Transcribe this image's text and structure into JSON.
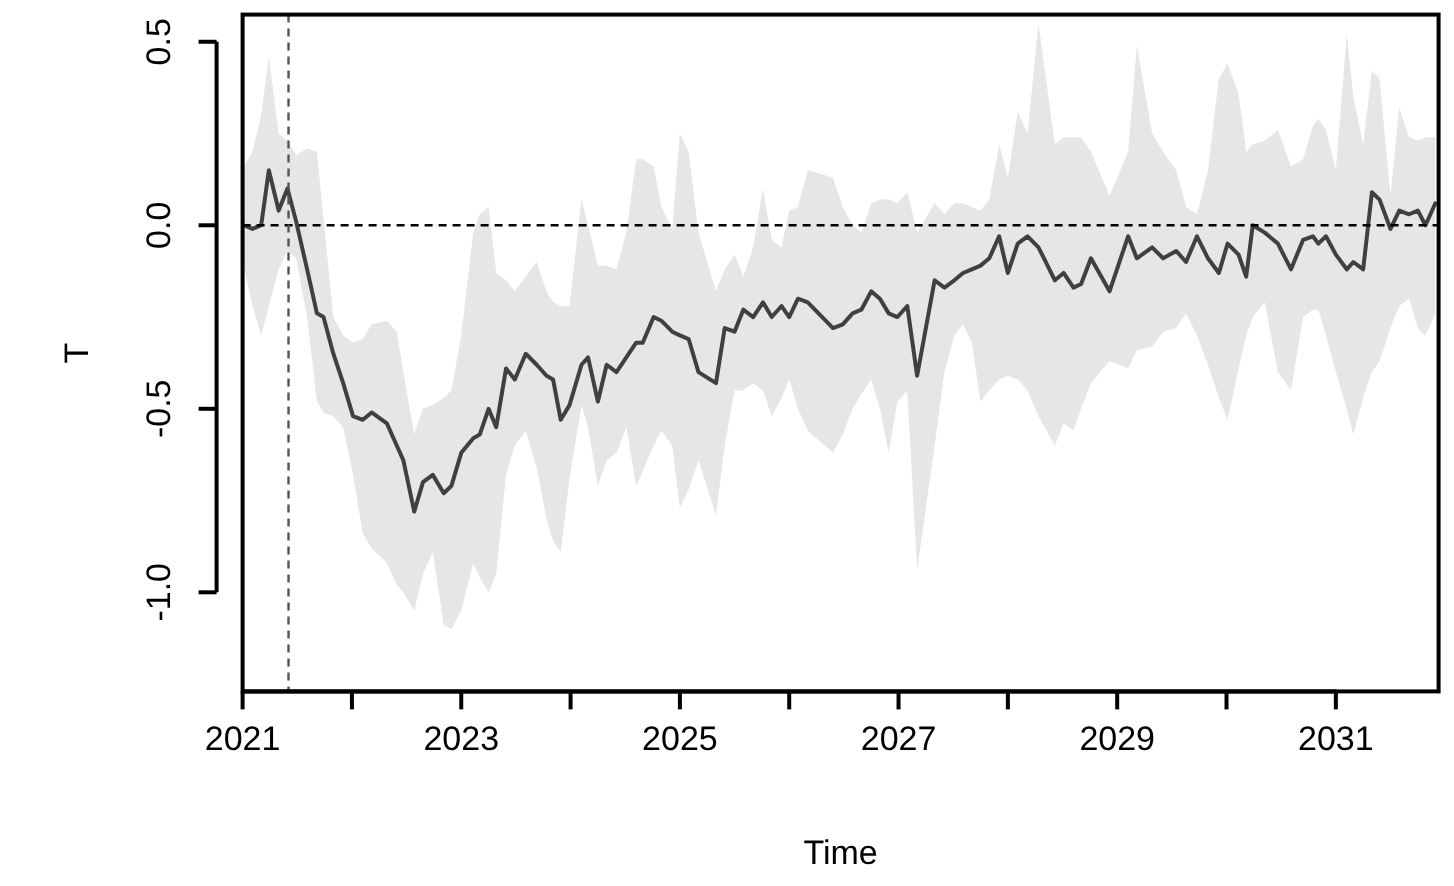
{
  "chart_data": {
    "type": "line",
    "xlabel": "Time",
    "ylabel": "T",
    "xlim": [
      2021,
      2031.94
    ],
    "ylim": [
      -1.27,
      0.574
    ],
    "xticks": [
      {
        "value": 2021,
        "label": "2021"
      },
      {
        "value": 2022,
        "label": null
      },
      {
        "value": 2023,
        "label": "2023"
      },
      {
        "value": 2024,
        "label": null
      },
      {
        "value": 2025,
        "label": "2025"
      },
      {
        "value": 2026,
        "label": null
      },
      {
        "value": 2027,
        "label": "2027"
      },
      {
        "value": 2028,
        "label": null
      },
      {
        "value": 2029,
        "label": "2029"
      },
      {
        "value": 2030,
        "label": null
      },
      {
        "value": 2031,
        "label": "2031"
      }
    ],
    "yticks": [
      {
        "value": -1,
        "label": "-1.0"
      },
      {
        "value": -0.5,
        "label": "-0.5"
      },
      {
        "value": 0,
        "label": "0.0"
      },
      {
        "value": 0.5,
        "label": "0.5"
      }
    ],
    "grid": false,
    "marker": "none",
    "line_style": "solid",
    "ref_lines": [
      {
        "axis": "y",
        "value": 0,
        "color": "#000000",
        "line_style": "dashed"
      },
      {
        "axis": "x",
        "value": 2021.42,
        "color": "#555555",
        "line_style": "dashed"
      }
    ],
    "series": [
      {
        "color": "#404040",
        "x": [
          2021.01,
          2021.09,
          2021.17,
          2021.24,
          2021.33,
          2021.41,
          2021.49,
          2021.59,
          2021.68,
          2021.74,
          2021.83,
          2021.92,
          2022.01,
          2022.1,
          2022.18,
          2022.32,
          2022.41,
          2022.47,
          2022.57,
          2022.65,
          2022.74,
          2022.84,
          2022.91,
          2023.0,
          2023.11,
          2023.17,
          2023.25,
          2023.32,
          2023.41,
          2023.49,
          2023.59,
          2023.69,
          2023.78,
          2023.84,
          2023.91,
          2023.99,
          2024.1,
          2024.16,
          2024.25,
          2024.33,
          2024.42,
          2024.51,
          2024.6,
          2024.66,
          2024.76,
          2024.83,
          2024.93,
          2025.0,
          2025.08,
          2025.17,
          2025.33,
          2025.41,
          2025.5,
          2025.58,
          2025.67,
          2025.76,
          2025.84,
          2025.93,
          2026.0,
          2026.08,
          2026.17,
          2026.4,
          2026.49,
          2026.58,
          2026.66,
          2026.75,
          2026.83,
          2026.91,
          2026.99,
          2027.08,
          2027.17,
          2027.33,
          2027.42,
          2027.51,
          2027.59,
          2027.67,
          2027.75,
          2027.83,
          2027.92,
          2028.0,
          2028.09,
          2028.18,
          2028.28,
          2028.43,
          2028.51,
          2028.6,
          2028.67,
          2028.76,
          2028.93,
          2029.1,
          2029.18,
          2029.32,
          2029.42,
          2029.54,
          2029.63,
          2029.73,
          2029.83,
          2029.93,
          2030.01,
          2030.11,
          2030.18,
          2030.24,
          2030.35,
          2030.47,
          2030.59,
          2030.7,
          2030.79,
          2030.84,
          2030.91,
          2031.0,
          2031.1,
          2031.16,
          2031.25,
          2031.33,
          2031.4,
          2031.5,
          2031.58,
          2031.67,
          2031.75,
          2031.82,
          2031.91
        ],
        "values": [
          0.0,
          -0.01,
          0.0,
          0.15,
          0.04,
          0.1,
          0.01,
          -0.12,
          -0.24,
          -0.25,
          -0.35,
          -0.43,
          -0.52,
          -0.53,
          -0.51,
          -0.54,
          -0.6,
          -0.64,
          -0.78,
          -0.7,
          -0.68,
          -0.73,
          -0.71,
          -0.62,
          -0.58,
          -0.57,
          -0.5,
          -0.55,
          -0.39,
          -0.42,
          -0.35,
          -0.38,
          -0.41,
          -0.42,
          -0.53,
          -0.49,
          -0.38,
          -0.36,
          -0.48,
          -0.38,
          -0.4,
          -0.36,
          -0.32,
          -0.32,
          -0.25,
          -0.26,
          -0.29,
          -0.3,
          -0.31,
          -0.4,
          -0.43,
          -0.28,
          -0.29,
          -0.23,
          -0.25,
          -0.21,
          -0.25,
          -0.22,
          -0.25,
          -0.2,
          -0.21,
          -0.28,
          -0.27,
          -0.24,
          -0.23,
          -0.18,
          -0.2,
          -0.24,
          -0.25,
          -0.22,
          -0.41,
          -0.15,
          -0.17,
          -0.15,
          -0.13,
          -0.12,
          -0.11,
          -0.09,
          -0.03,
          -0.13,
          -0.05,
          -0.03,
          -0.06,
          -0.15,
          -0.13,
          -0.17,
          -0.16,
          -0.09,
          -0.18,
          -0.03,
          -0.09,
          -0.06,
          -0.09,
          -0.07,
          -0.1,
          -0.03,
          -0.09,
          -0.13,
          -0.05,
          -0.08,
          -0.14,
          0.0,
          -0.02,
          -0.05,
          -0.12,
          -0.04,
          -0.03,
          -0.05,
          -0.03,
          -0.08,
          -0.12,
          -0.1,
          -0.12,
          0.09,
          0.07,
          -0.01,
          0.04,
          0.03,
          0.04,
          0.0,
          0.06
        ],
        "upper": [
          0.16,
          0.2,
          0.3,
          0.46,
          0.25,
          0.23,
          0.19,
          0.21,
          0.2,
          0.02,
          -0.25,
          -0.3,
          -0.32,
          -0.31,
          -0.27,
          -0.26,
          -0.29,
          -0.4,
          -0.57,
          -0.5,
          -0.49,
          -0.47,
          -0.45,
          -0.3,
          -0.02,
          0.03,
          0.05,
          -0.13,
          -0.15,
          -0.18,
          -0.14,
          -0.1,
          -0.18,
          -0.21,
          -0.22,
          -0.22,
          0.07,
          0.0,
          -0.11,
          -0.11,
          -0.12,
          -0.02,
          0.18,
          0.18,
          0.16,
          0.05,
          -0.01,
          0.25,
          0.2,
          -0.02,
          -0.18,
          -0.12,
          -0.08,
          -0.14,
          -0.06,
          0.1,
          -0.04,
          -0.06,
          0.04,
          0.05,
          0.15,
          0.13,
          0.05,
          0.0,
          -0.02,
          0.06,
          0.07,
          0.07,
          0.06,
          0.09,
          -0.02,
          0.06,
          0.03,
          0.06,
          0.06,
          0.05,
          0.04,
          0.07,
          0.22,
          0.13,
          0.31,
          0.25,
          0.55,
          0.22,
          0.24,
          0.24,
          0.24,
          0.2,
          0.08,
          0.2,
          0.49,
          0.25,
          0.2,
          0.15,
          0.05,
          0.03,
          0.15,
          0.4,
          0.44,
          0.36,
          0.2,
          0.22,
          0.23,
          0.26,
          0.16,
          0.18,
          0.27,
          0.29,
          0.26,
          0.15,
          0.52,
          0.35,
          0.22,
          0.42,
          0.4,
          0.08,
          0.32,
          0.24,
          0.23,
          0.24,
          0.24
        ],
        "lower": [
          -0.11,
          -0.22,
          -0.3,
          -0.22,
          -0.12,
          -0.07,
          -0.09,
          -0.25,
          -0.48,
          -0.51,
          -0.52,
          -0.55,
          -0.68,
          -0.84,
          -0.88,
          -0.92,
          -0.98,
          -1.0,
          -1.05,
          -0.95,
          -0.89,
          -1.09,
          -1.1,
          -1.05,
          -0.92,
          -0.96,
          -1.0,
          -0.95,
          -0.68,
          -0.6,
          -0.56,
          -0.66,
          -0.8,
          -0.86,
          -0.89,
          -0.69,
          -0.49,
          -0.55,
          -0.71,
          -0.64,
          -0.62,
          -0.55,
          -0.71,
          -0.67,
          -0.6,
          -0.56,
          -0.6,
          -0.77,
          -0.72,
          -0.64,
          -0.79,
          -0.6,
          -0.45,
          -0.45,
          -0.43,
          -0.45,
          -0.52,
          -0.47,
          -0.42,
          -0.5,
          -0.56,
          -0.62,
          -0.57,
          -0.5,
          -0.46,
          -0.42,
          -0.5,
          -0.62,
          -0.48,
          -0.45,
          -0.94,
          -0.6,
          -0.4,
          -0.3,
          -0.27,
          -0.32,
          -0.48,
          -0.45,
          -0.42,
          -0.41,
          -0.42,
          -0.45,
          -0.52,
          -0.6,
          -0.54,
          -0.56,
          -0.5,
          -0.43,
          -0.37,
          -0.39,
          -0.34,
          -0.33,
          -0.29,
          -0.28,
          -0.24,
          -0.3,
          -0.38,
          -0.47,
          -0.53,
          -0.39,
          -0.3,
          -0.25,
          -0.21,
          -0.4,
          -0.45,
          -0.25,
          -0.23,
          -0.23,
          -0.3,
          -0.4,
          -0.5,
          -0.57,
          -0.47,
          -0.4,
          -0.37,
          -0.28,
          -0.22,
          -0.2,
          -0.28,
          -0.3,
          -0.24
        ]
      }
    ]
  }
}
